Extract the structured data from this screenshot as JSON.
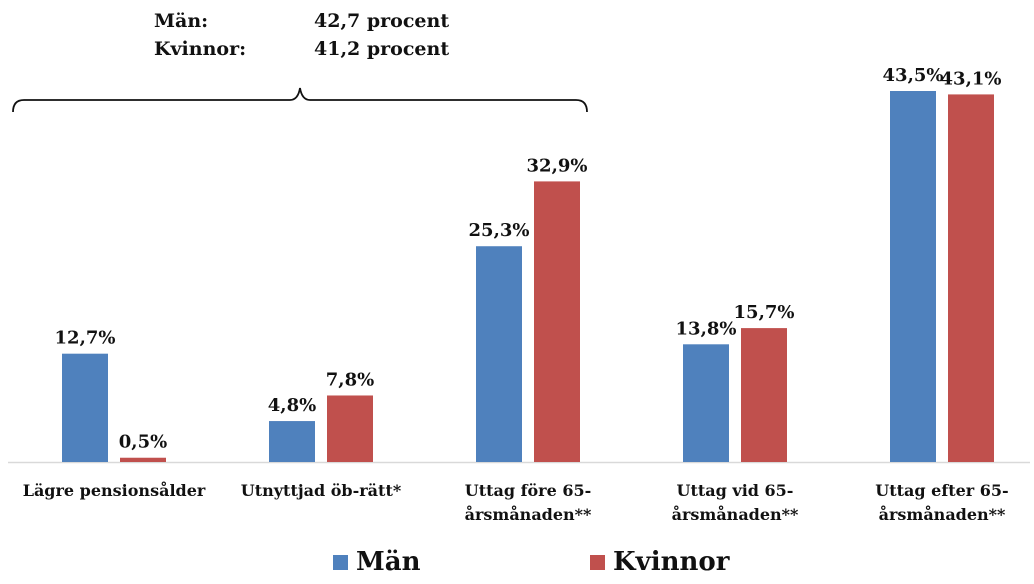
{
  "summary": {
    "rows": [
      {
        "label": "Män:",
        "value": "42,7 procent"
      },
      {
        "label": "Kvinnor:",
        "value": "41,2 procent"
      }
    ]
  },
  "chart_data": {
    "type": "bar",
    "categories": [
      [
        "Lägre pensionsålder"
      ],
      [
        "Utnyttjad öb-rätt*"
      ],
      [
        "Uttag före 65-",
        "årsmånaden**"
      ],
      [
        "Uttag vid 65-",
        "årsmånaden**"
      ],
      [
        "Uttag efter 65-",
        "årsmånaden**"
      ]
    ],
    "series": [
      {
        "name": "Män",
        "values": [
          12.7,
          4.8,
          25.3,
          13.8,
          43.5
        ],
        "labels": [
          "12,7%",
          "4,8%",
          "25,3%",
          "13,8%",
          "43,5%"
        ],
        "color": "#4F81BD"
      },
      {
        "name": "Kvinnor",
        "values": [
          0.5,
          7.8,
          32.9,
          15.7,
          43.1
        ],
        "labels": [
          "0,5%",
          "7,8%",
          "32,9%",
          "15,7%",
          "43,1%"
        ],
        "color": "#C0504D"
      }
    ],
    "ylim": [
      0,
      43.5
    ],
    "grid": false,
    "legend": "bottom-center"
  }
}
